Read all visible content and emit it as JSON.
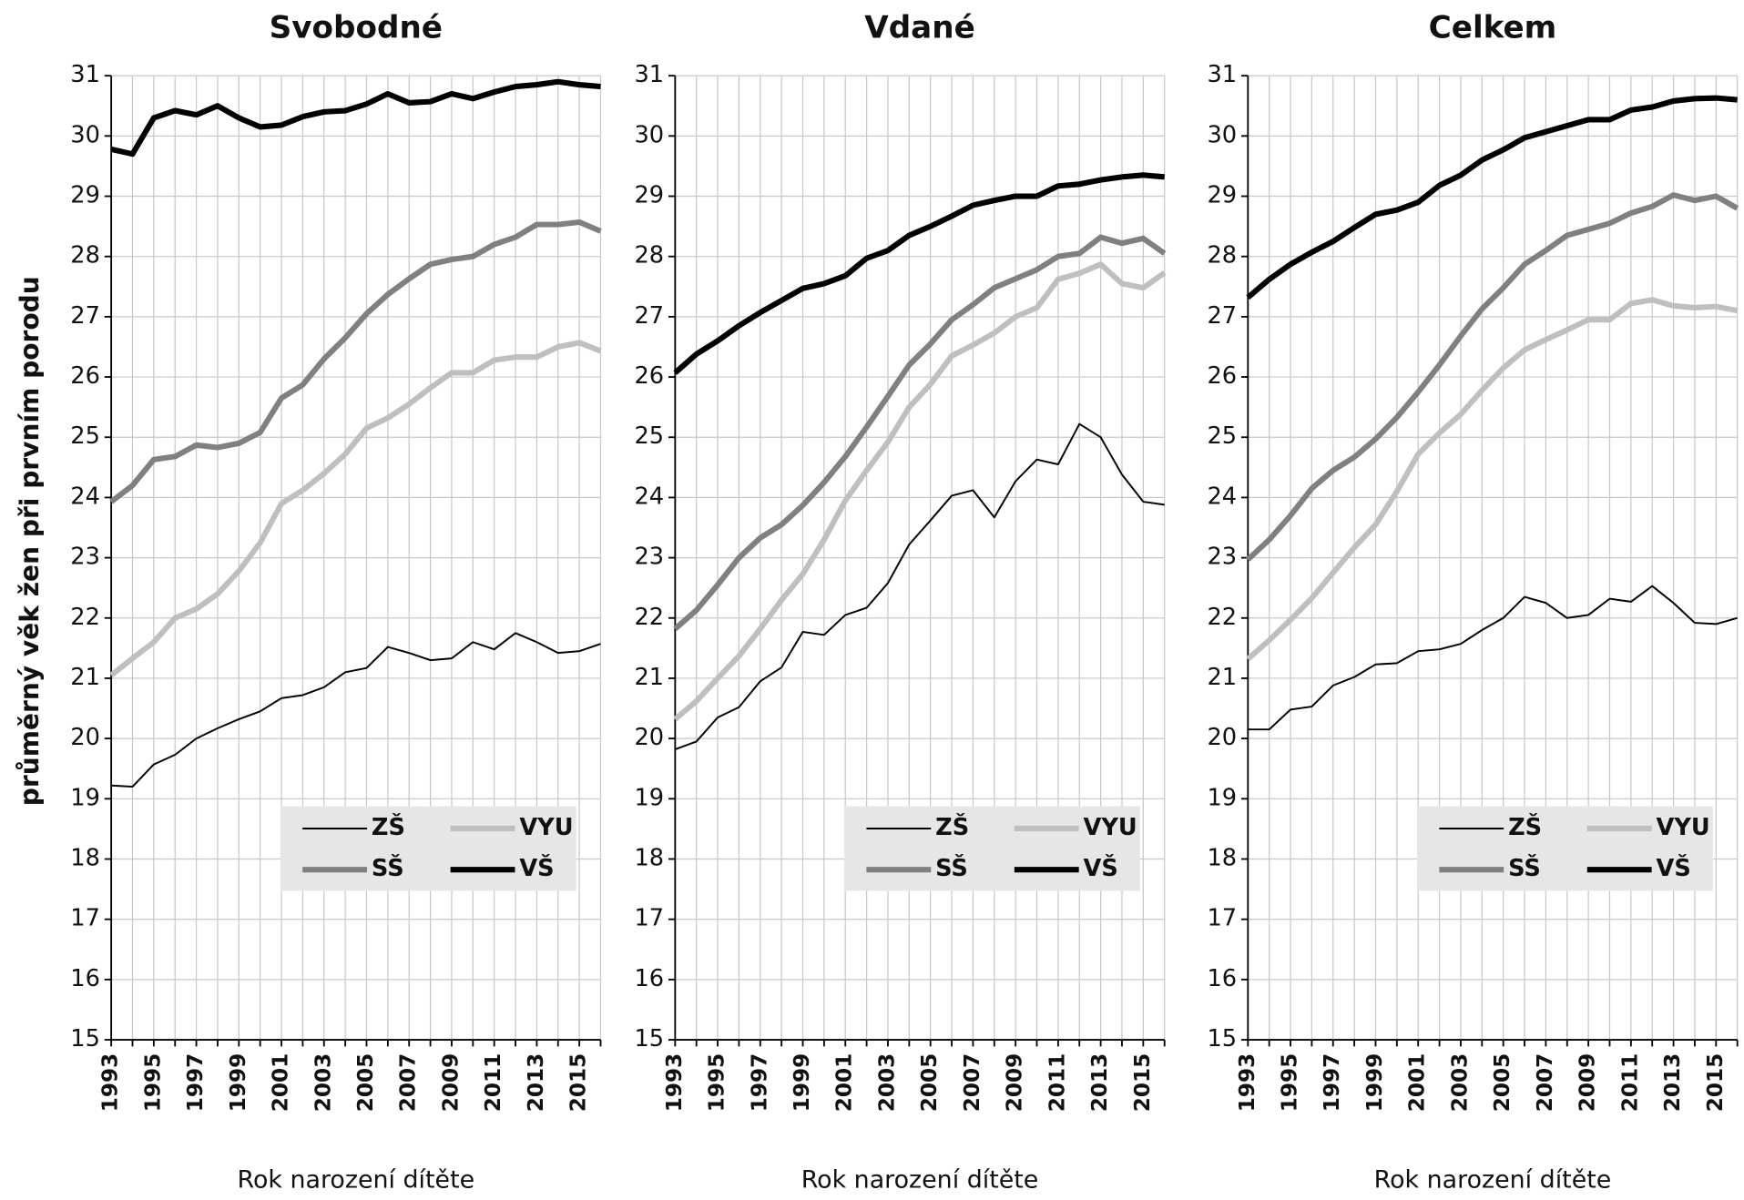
{
  "chart_data": [
    {
      "type": "line",
      "title": "Svobodné",
      "ylabel": "průměrný věk žen při prvním porodu",
      "xlabel": "Rok narození dítěte",
      "categories": [
        1993,
        null,
        1995,
        null,
        1997,
        null,
        1999,
        null,
        2001,
        null,
        2003,
        null,
        2005,
        null,
        2007,
        null,
        2009,
        null,
        2011,
        null,
        2013,
        null,
        2015,
        null
      ],
      "ylim": [
        15,
        31
      ],
      "yticks": [
        15,
        16,
        17,
        18,
        19,
        20,
        21,
        22,
        23,
        24,
        25,
        26,
        27,
        28,
        29,
        30,
        31
      ],
      "grid": true,
      "legend": "lower right",
      "series": [
        {
          "name": "ZŠ",
          "color": "#000000",
          "values": [
            19.22,
            19.2,
            19.57,
            19.73,
            20.0,
            20.17,
            20.32,
            20.45,
            20.67,
            20.72,
            20.85,
            21.1,
            21.17,
            21.52,
            21.42,
            21.3,
            21.33,
            21.6,
            21.48,
            21.75,
            21.6,
            21.42,
            21.45,
            21.57
          ]
        },
        {
          "name": "VYU",
          "color": "#bfbfbf",
          "values": [
            21.05,
            21.33,
            21.6,
            22.0,
            22.15,
            22.4,
            22.78,
            23.25,
            23.9,
            24.12,
            24.4,
            24.72,
            25.15,
            25.32,
            25.55,
            25.82,
            26.07,
            26.07,
            26.28,
            26.33,
            26.33,
            26.5,
            26.57,
            26.43
          ]
        },
        {
          "name": "SŠ",
          "color": "#808080",
          "values": [
            23.93,
            24.2,
            24.63,
            24.68,
            24.87,
            24.83,
            24.9,
            25.08,
            25.65,
            25.87,
            26.3,
            26.65,
            27.05,
            27.37,
            27.63,
            27.87,
            27.95,
            28.0,
            28.2,
            28.32,
            28.53,
            28.53,
            28.57,
            28.42
          ]
        },
        {
          "name": "VŠ",
          "color": "#000000",
          "values": [
            29.78,
            29.7,
            30.3,
            30.42,
            30.35,
            30.5,
            30.3,
            30.15,
            30.18,
            30.32,
            30.4,
            30.42,
            30.53,
            30.7,
            30.55,
            30.57,
            30.7,
            30.62,
            30.73,
            30.82,
            30.85,
            30.9,
            30.85,
            30.82
          ]
        }
      ]
    },
    {
      "type": "line",
      "title": "Vdané",
      "xlabel": "Rok narození dítěte",
      "categories": [
        1993,
        null,
        1995,
        null,
        1997,
        null,
        1999,
        null,
        2001,
        null,
        2003,
        null,
        2005,
        null,
        2007,
        null,
        2009,
        null,
        2011,
        null,
        2013,
        null,
        2015,
        null
      ],
      "ylim": [
        15,
        31
      ],
      "yticks": [
        15,
        16,
        17,
        18,
        19,
        20,
        21,
        22,
        23,
        24,
        25,
        26,
        27,
        28,
        29,
        30,
        31
      ],
      "grid": true,
      "legend": "lower right",
      "series": [
        {
          "name": "ZŠ",
          "color": "#000000",
          "values": [
            19.82,
            19.95,
            20.35,
            20.52,
            20.95,
            21.18,
            21.77,
            21.72,
            22.05,
            22.17,
            22.58,
            23.22,
            23.62,
            24.03,
            24.12,
            23.67,
            24.27,
            24.63,
            24.55,
            25.22,
            25.0,
            24.38,
            23.93,
            23.88
          ]
        },
        {
          "name": "VYU",
          "color": "#bfbfbf",
          "values": [
            20.32,
            20.62,
            21.0,
            21.37,
            21.82,
            22.3,
            22.73,
            23.3,
            23.95,
            24.45,
            24.92,
            25.5,
            25.88,
            26.35,
            26.53,
            26.73,
            27.0,
            27.15,
            27.62,
            27.72,
            27.87,
            27.55,
            27.48,
            27.73
          ]
        },
        {
          "name": "SŠ",
          "color": "#808080",
          "values": [
            21.82,
            22.13,
            22.55,
            23.0,
            23.33,
            23.55,
            23.87,
            24.25,
            24.68,
            25.17,
            25.68,
            26.2,
            26.55,
            26.95,
            27.2,
            27.48,
            27.63,
            27.78,
            28.0,
            28.05,
            28.32,
            28.22,
            28.3,
            28.05
          ]
        },
        {
          "name": "VŠ",
          "color": "#000000",
          "values": [
            26.07,
            26.38,
            26.6,
            26.85,
            27.07,
            27.27,
            27.47,
            27.55,
            27.68,
            27.97,
            28.1,
            28.35,
            28.5,
            28.67,
            28.85,
            28.93,
            29.0,
            29.0,
            29.17,
            29.2,
            29.27,
            29.32,
            29.35,
            29.32
          ]
        }
      ]
    },
    {
      "type": "line",
      "title": "Celkem",
      "xlabel": "Rok narození dítěte",
      "categories": [
        1993,
        null,
        1995,
        null,
        1997,
        null,
        1999,
        null,
        2001,
        null,
        2003,
        null,
        2005,
        null,
        2007,
        null,
        2009,
        null,
        2011,
        null,
        2013,
        null,
        2015,
        null
      ],
      "ylim": [
        15,
        31
      ],
      "yticks": [
        15,
        16,
        17,
        18,
        19,
        20,
        21,
        22,
        23,
        24,
        25,
        26,
        27,
        28,
        29,
        30,
        31
      ],
      "grid": true,
      "legend": "lower right",
      "series": [
        {
          "name": "ZŠ",
          "color": "#000000",
          "values": [
            20.15,
            20.15,
            20.48,
            20.53,
            20.88,
            21.02,
            21.23,
            21.25,
            21.45,
            21.48,
            21.57,
            21.8,
            22.0,
            22.35,
            22.25,
            22.0,
            22.05,
            22.32,
            22.27,
            22.53,
            22.25,
            21.92,
            21.9,
            22.0
          ]
        },
        {
          "name": "VYU",
          "color": "#bfbfbf",
          "values": [
            21.32,
            21.63,
            21.97,
            22.33,
            22.75,
            23.17,
            23.55,
            24.1,
            24.72,
            25.07,
            25.38,
            25.78,
            26.15,
            26.45,
            26.62,
            26.78,
            26.95,
            26.95,
            27.22,
            27.28,
            27.18,
            27.15,
            27.17,
            27.1
          ]
        },
        {
          "name": "SŠ",
          "color": "#808080",
          "values": [
            22.97,
            23.3,
            23.7,
            24.15,
            24.45,
            24.67,
            24.97,
            25.33,
            25.75,
            26.2,
            26.68,
            27.13,
            27.48,
            27.87,
            28.1,
            28.35,
            28.45,
            28.55,
            28.72,
            28.83,
            29.02,
            28.93,
            29.0,
            28.8
          ]
        },
        {
          "name": "VŠ",
          "color": "#000000",
          "values": [
            27.32,
            27.62,
            27.87,
            28.07,
            28.25,
            28.48,
            28.7,
            28.77,
            28.9,
            29.18,
            29.35,
            29.6,
            29.77,
            29.97,
            30.07,
            30.17,
            30.27,
            30.27,
            30.43,
            30.48,
            30.58,
            30.62,
            30.63,
            30.6
          ]
        }
      ]
    }
  ]
}
